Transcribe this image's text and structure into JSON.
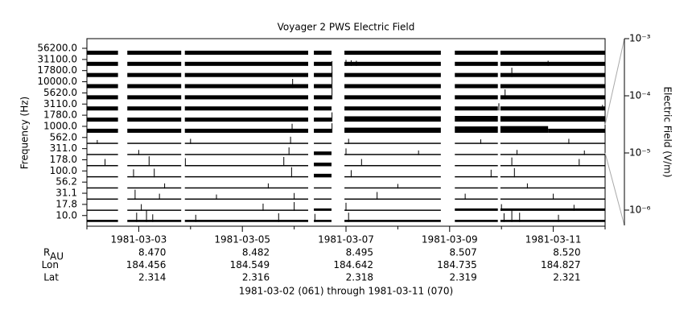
{
  "chart_data": {
    "type": "channel-strips",
    "title": "Voyager 2 PWS Electric Field",
    "ylabel": "Frequency (Hz)",
    "y2label": "Electric Field (V/m)",
    "xlabel": "1981-03-02 (061) through 1981-03-11 (070)",
    "xlim": [
      61,
      71
    ],
    "xticks": [
      {
        "value": 62,
        "label": "1981-03-03"
      },
      {
        "value": 64,
        "label": "1981-03-05"
      },
      {
        "value": 66,
        "label": "1981-03-07"
      },
      {
        "value": 68,
        "label": "1981-03-09"
      },
      {
        "value": 70,
        "label": "1981-03-11"
      }
    ],
    "xminorticks": [
      61,
      63,
      65,
      67,
      69,
      71
    ],
    "y2lim": [
      5.4e-07,
      0.001
    ],
    "y2log": true,
    "y2ticks": [
      {
        "value": 0.001,
        "label": "10⁻³"
      },
      {
        "value": 0.0001,
        "label": "10⁻⁴"
      },
      {
        "value": 1e-05,
        "label": "10⁻⁵"
      },
      {
        "value": 1e-06,
        "label": "10⁻⁶"
      }
    ],
    "color": "#000000",
    "channels": [
      {
        "label": "56200.0",
        "segments": [
          [
            61.0,
            61.6,
            2.1e-06
          ],
          [
            61.78,
            62.82,
            2.1e-06
          ],
          [
            62.89,
            65.27,
            2.1e-06
          ],
          [
            65.38,
            65.72,
            2.1e-06
          ],
          [
            65.97,
            67.83,
            2.1e-06
          ],
          [
            68.1,
            68.93,
            2.1e-06
          ],
          [
            68.98,
            71.0,
            2.1e-06
          ]
        ],
        "spikes": []
      },
      {
        "label": "31100.0",
        "segments": [
          [
            61.0,
            61.6,
            2.1e-06
          ],
          [
            61.78,
            62.82,
            2.1e-06
          ],
          [
            62.89,
            65.27,
            2.1e-06
          ],
          [
            65.38,
            65.72,
            2.1e-06
          ],
          [
            65.97,
            67.83,
            2.1e-06
          ],
          [
            68.1,
            68.93,
            2.1e-06
          ],
          [
            68.98,
            71.0,
            2.1e-06
          ]
        ],
        "spikes": [
          [
            66.0,
            4e-06
          ],
          [
            66.1,
            3.5e-06
          ],
          [
            66.2,
            3e-06
          ],
          [
            69.9,
            3e-06
          ]
        ]
      },
      {
        "label": "17800.0",
        "segments": [
          [
            61.0,
            61.6,
            2.1e-06
          ],
          [
            61.78,
            62.82,
            2.1e-06
          ],
          [
            62.89,
            65.27,
            2.1e-06
          ],
          [
            65.38,
            65.72,
            2.1e-06
          ],
          [
            65.97,
            67.83,
            2.1e-06
          ],
          [
            68.1,
            68.93,
            2.1e-06
          ],
          [
            68.98,
            71.0,
            2.1e-06
          ]
        ],
        "spikes": [
          [
            65.73,
            0.00011
          ],
          [
            69.2,
            1.2e-05
          ]
        ]
      },
      {
        "label": "10000.0",
        "segments": [
          [
            61.0,
            61.6,
            2.1e-06
          ],
          [
            61.78,
            62.82,
            2.1e-06
          ],
          [
            62.89,
            65.27,
            2.1e-06
          ],
          [
            65.38,
            65.72,
            2.1e-06
          ],
          [
            65.97,
            67.83,
            2.1e-06
          ],
          [
            68.1,
            68.93,
            2.1e-06
          ],
          [
            68.98,
            71.0,
            2.1e-06
          ]
        ],
        "spikes": [
          [
            64.97,
            1.2e-05
          ],
          [
            65.73,
            0.00011
          ]
        ]
      },
      {
        "label": "5620.0",
        "segments": [
          [
            61.0,
            61.6,
            2.1e-06
          ],
          [
            61.78,
            62.82,
            2.1e-06
          ],
          [
            62.89,
            65.27,
            2.1e-06
          ],
          [
            65.38,
            65.72,
            2.1e-06
          ],
          [
            65.97,
            67.83,
            2.1e-06
          ],
          [
            68.1,
            68.93,
            2.1e-06
          ],
          [
            68.98,
            71.0,
            2.1e-06
          ]
        ],
        "spikes": [
          [
            65.73,
            2.5e-05
          ],
          [
            69.07,
            1.5e-05
          ]
        ]
      },
      {
        "label": "3110.0",
        "segments": [
          [
            61.0,
            61.6,
            2.1e-06
          ],
          [
            61.78,
            62.82,
            2.1e-06
          ],
          [
            62.89,
            65.27,
            2.1e-06
          ],
          [
            65.38,
            65.72,
            2.1e-06
          ],
          [
            65.97,
            67.83,
            2.1e-06
          ],
          [
            68.1,
            68.93,
            2.1e-06
          ],
          [
            68.98,
            71.0,
            2.1e-06
          ]
        ],
        "spikes": [
          [
            68.95,
            6e-06
          ],
          [
            70.95,
            3.5e-06
          ]
        ]
      },
      {
        "label": "1780.0",
        "segments": [
          [
            61.0,
            61.6,
            2.1e-06
          ],
          [
            61.78,
            62.82,
            2.1e-06
          ],
          [
            62.89,
            65.27,
            2.1e-06
          ],
          [
            65.38,
            65.72,
            2.1e-06
          ],
          [
            65.97,
            67.83,
            3.2e-06
          ],
          [
            68.1,
            68.93,
            3.6e-06
          ],
          [
            68.98,
            71.0,
            3.4e-06
          ]
        ],
        "spikes": [
          [
            65.73,
            1.2e-05
          ]
        ]
      },
      {
        "label": "1000.0",
        "segments": [
          [
            61.0,
            61.6,
            2.1e-06
          ],
          [
            61.78,
            62.82,
            2.1e-06
          ],
          [
            62.89,
            65.27,
            2.1e-06
          ],
          [
            65.38,
            65.72,
            2.1e-06
          ],
          [
            65.97,
            67.83,
            3e-06
          ],
          [
            68.1,
            68.93,
            4.5e-06
          ],
          [
            68.98,
            69.9,
            5e-06
          ],
          [
            69.9,
            71.0,
            2.1e-06
          ]
        ],
        "spikes": [
          [
            64.96,
            1.1e-05
          ],
          [
            65.73,
            1.3e-05
          ]
        ]
      },
      {
        "label": "562.0",
        "segments": [
          [
            61.0,
            61.6,
            8e-07
          ],
          [
            61.78,
            62.82,
            8e-07
          ],
          [
            62.89,
            65.27,
            8e-07
          ],
          [
            65.38,
            65.72,
            8e-07
          ],
          [
            65.97,
            67.83,
            8e-07
          ],
          [
            68.1,
            68.93,
            8e-07
          ],
          [
            68.98,
            71.0,
            8e-07
          ]
        ],
        "spikes": [
          [
            61.2,
            2e-06
          ],
          [
            63.0,
            3e-06
          ],
          [
            64.93,
            6e-06
          ],
          [
            66.05,
            3e-06
          ],
          [
            68.6,
            2.5e-06
          ],
          [
            70.3,
            3e-06
          ]
        ]
      },
      {
        "label": "311.0",
        "segments": [
          [
            61.0,
            61.6,
            8e-07
          ],
          [
            61.78,
            62.82,
            8e-07
          ],
          [
            62.89,
            65.27,
            8e-07
          ],
          [
            65.38,
            65.72,
            1.8e-06
          ],
          [
            65.97,
            67.83,
            8e-07
          ],
          [
            68.1,
            68.93,
            8e-07
          ],
          [
            68.98,
            71.0,
            8e-07
          ]
        ],
        "spikes": [
          [
            62.0,
            3e-06
          ],
          [
            64.9,
            7e-06
          ],
          [
            66.0,
            5e-06
          ],
          [
            67.4,
            2.5e-06
          ],
          [
            69.3,
            3e-06
          ],
          [
            70.6,
            2.5e-06
          ]
        ]
      },
      {
        "label": "178.0",
        "segments": [
          [
            61.0,
            61.6,
            8e-07
          ],
          [
            61.78,
            62.82,
            8e-07
          ],
          [
            62.89,
            65.27,
            8e-07
          ],
          [
            65.38,
            65.72,
            1.8e-06
          ],
          [
            65.97,
            67.83,
            8e-07
          ],
          [
            68.1,
            68.93,
            8e-07
          ],
          [
            68.98,
            71.0,
            8e-07
          ]
        ],
        "spikes": [
          [
            61.35,
            6e-06
          ],
          [
            62.2,
            1.5e-05
          ],
          [
            62.9,
            8e-06
          ],
          [
            64.8,
            1.2e-05
          ],
          [
            66.3,
            6e-06
          ],
          [
            69.2,
            1e-05
          ],
          [
            70.5,
            6e-06
          ]
        ]
      },
      {
        "label": "100.0",
        "segments": [
          [
            61.0,
            61.6,
            8e-07
          ],
          [
            61.78,
            62.82,
            8e-07
          ],
          [
            62.89,
            65.27,
            8e-07
          ],
          [
            65.38,
            65.72,
            1.8e-06
          ],
          [
            65.97,
            67.83,
            8e-07
          ],
          [
            68.1,
            68.93,
            8e-07
          ],
          [
            68.98,
            71.0,
            8e-07
          ]
        ],
        "spikes": [
          [
            61.9,
            8e-06
          ],
          [
            62.3,
            1e-05
          ],
          [
            64.95,
            1.6e-05
          ],
          [
            66.1,
            6e-06
          ],
          [
            68.8,
            7e-06
          ],
          [
            69.25,
            1.2e-05
          ]
        ]
      },
      {
        "label": "56.2",
        "segments": [
          [
            61.0,
            61.6,
            8e-07
          ],
          [
            61.78,
            62.82,
            8e-07
          ],
          [
            62.89,
            65.27,
            8e-07
          ],
          [
            65.38,
            65.72,
            8e-07
          ],
          [
            65.97,
            67.83,
            8e-07
          ],
          [
            68.1,
            68.93,
            8e-07
          ],
          [
            68.98,
            71.0,
            8e-07
          ]
        ],
        "spikes": [
          [
            62.5,
            3e-06
          ],
          [
            64.5,
            3e-06
          ],
          [
            67.0,
            2.5e-06
          ],
          [
            69.5,
            3e-06
          ]
        ]
      },
      {
        "label": "31.1",
        "segments": [
          [
            61.0,
            61.6,
            8e-07
          ],
          [
            61.78,
            62.82,
            8e-07
          ],
          [
            62.89,
            65.27,
            8e-07
          ],
          [
            65.38,
            65.72,
            8e-07
          ],
          [
            65.97,
            67.83,
            8e-07
          ],
          [
            68.1,
            68.93,
            8e-07
          ],
          [
            68.98,
            71.0,
            8e-07
          ]
        ],
        "spikes": [
          [
            61.93,
            1.5e-05
          ],
          [
            62.4,
            4e-06
          ],
          [
            63.5,
            3e-06
          ],
          [
            65.0,
            5e-06
          ],
          [
            66.6,
            7e-06
          ],
          [
            68.3,
            4e-06
          ],
          [
            70.0,
            4e-06
          ]
        ]
      },
      {
        "label": "17.8",
        "segments": [
          [
            61.0,
            61.6,
            8e-07
          ],
          [
            61.78,
            62.82,
            8e-07
          ],
          [
            62.89,
            65.27,
            8e-07
          ],
          [
            65.38,
            65.72,
            1.2e-06
          ],
          [
            65.97,
            67.83,
            8e-07
          ],
          [
            68.1,
            68.93,
            1.2e-06
          ],
          [
            68.98,
            71.0,
            1.2e-06
          ]
        ],
        "spikes": [
          [
            62.05,
            5e-06
          ],
          [
            64.4,
            6e-06
          ],
          [
            65.0,
            1e-05
          ],
          [
            66.0,
            8e-06
          ],
          [
            69.0,
            5e-06
          ],
          [
            70.4,
            4e-06
          ]
        ]
      },
      {
        "label": "10.0",
        "segments": [
          [
            61.0,
            61.6,
            1.1e-06
          ],
          [
            61.78,
            62.82,
            1.1e-06
          ],
          [
            62.89,
            65.27,
            1.1e-06
          ],
          [
            65.38,
            65.72,
            1.1e-06
          ],
          [
            65.97,
            67.83,
            1.1e-06
          ],
          [
            68.1,
            68.93,
            1.1e-06
          ],
          [
            68.98,
            71.0,
            1.1e-06
          ]
        ],
        "spikes": [
          [
            61.96,
            1.2e-05
          ],
          [
            62.15,
            3e-05
          ],
          [
            62.27,
            7e-06
          ],
          [
            63.1,
            6e-06
          ],
          [
            64.7,
            1e-05
          ],
          [
            65.4,
            8e-06
          ],
          [
            66.05,
            1.2e-05
          ],
          [
            69.05,
            1e-05
          ],
          [
            69.2,
            4e-05
          ],
          [
            69.35,
            1.2e-05
          ],
          [
            70.1,
            6e-06
          ]
        ]
      }
    ],
    "ephemeris": [
      {
        "label": "R",
        "subscript": "AU",
        "values": [
          "8.470",
          "8.482",
          "8.495",
          "8.507",
          "8.520"
        ]
      },
      {
        "label": "Lon",
        "values": [
          "184.456",
          "184.549",
          "184.642",
          "184.735",
          "184.827"
        ]
      },
      {
        "label": "Lat",
        "values": [
          "2.314",
          "2.316",
          "2.318",
          "2.319",
          "2.321"
        ]
      }
    ]
  }
}
